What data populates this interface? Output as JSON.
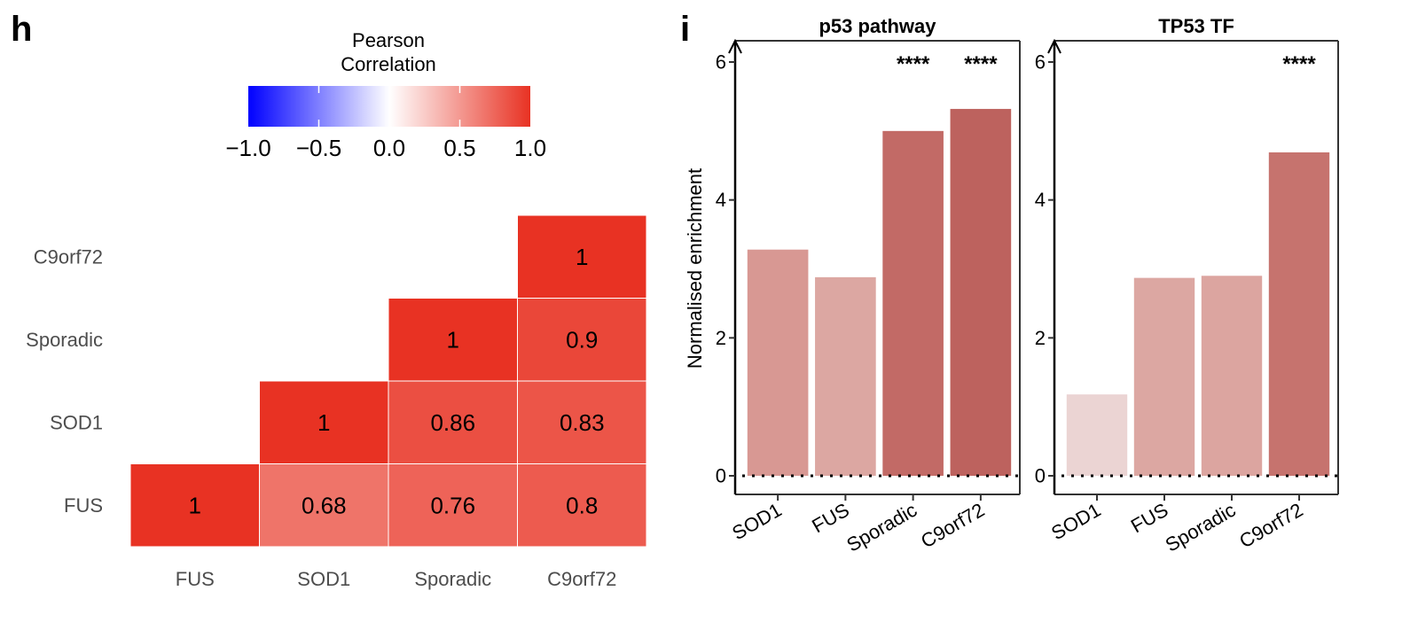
{
  "panel_labels": {
    "h": "h",
    "i": "i"
  },
  "chart_data": [
    {
      "type": "heatmap",
      "panel": "h",
      "legend": {
        "title_line1": "Pearson",
        "title_line2": "Correlation",
        "ticks": [
          "−1.0",
          "−0.5",
          "0.0",
          "0.5",
          "1.0"
        ],
        "tick_values": [
          -1.0,
          -0.5,
          0.0,
          0.5,
          1.0
        ],
        "range": [
          -1.0,
          1.0
        ],
        "colors": {
          "low": "#0000ff",
          "mid": "#ffffff",
          "high": "#e83223"
        }
      },
      "x_labels": [
        "FUS",
        "SOD1",
        "Sporadic",
        "C9orf72"
      ],
      "y_labels": [
        "FUS",
        "SOD1",
        "Sporadic",
        "C9orf72"
      ],
      "cells": [
        {
          "x": "FUS",
          "y": "FUS",
          "value": 1,
          "label": "1"
        },
        {
          "x": "SOD1",
          "y": "FUS",
          "value": 0.68,
          "label": "0.68"
        },
        {
          "x": "Sporadic",
          "y": "FUS",
          "value": 0.76,
          "label": "0.76"
        },
        {
          "x": "C9orf72",
          "y": "FUS",
          "value": 0.8,
          "label": "0.8"
        },
        {
          "x": "SOD1",
          "y": "SOD1",
          "value": 1,
          "label": "1"
        },
        {
          "x": "Sporadic",
          "y": "SOD1",
          "value": 0.86,
          "label": "0.86"
        },
        {
          "x": "C9orf72",
          "y": "SOD1",
          "value": 0.83,
          "label": "0.83"
        },
        {
          "x": "Sporadic",
          "y": "Sporadic",
          "value": 1,
          "label": "1"
        },
        {
          "x": "C9orf72",
          "y": "Sporadic",
          "value": 0.9,
          "label": "0.9"
        },
        {
          "x": "C9orf72",
          "y": "C9orf72",
          "value": 1,
          "label": "1"
        }
      ]
    },
    {
      "type": "bar",
      "panel": "i",
      "title": "p53 pathway",
      "ylabel": "Normalised enrichment",
      "xlabel": "",
      "ylim": [
        0,
        6
      ],
      "yticks": [
        "0",
        "2",
        "4",
        "6"
      ],
      "ytick_values": [
        0,
        2,
        4,
        6
      ],
      "categories": [
        "SOD1",
        "FUS",
        "Sporadic",
        "C9orf72"
      ],
      "values": [
        3.28,
        2.88,
        5.0,
        5.32
      ],
      "colors": [
        "#d89893",
        "#dca7a2",
        "#c26a66",
        "#bd625e"
      ],
      "significance": [
        "",
        "",
        "****",
        "****"
      ],
      "reference_line": 0
    },
    {
      "type": "bar",
      "panel": "i",
      "title": "TP53 TF",
      "ylabel": "",
      "xlabel": "",
      "ylim": [
        0,
        6
      ],
      "yticks": [
        "0",
        "2",
        "4",
        "6"
      ],
      "ytick_values": [
        0,
        2,
        4,
        6
      ],
      "categories": [
        "SOD1",
        "FUS",
        "Sporadic",
        "C9orf72"
      ],
      "values": [
        1.18,
        2.87,
        2.9,
        4.69
      ],
      "colors": [
        "#ebd4d3",
        "#dca7a2",
        "#dca5a0",
        "#c6736e"
      ],
      "significance": [
        "",
        "",
        "",
        "****"
      ],
      "reference_line": 0
    }
  ]
}
